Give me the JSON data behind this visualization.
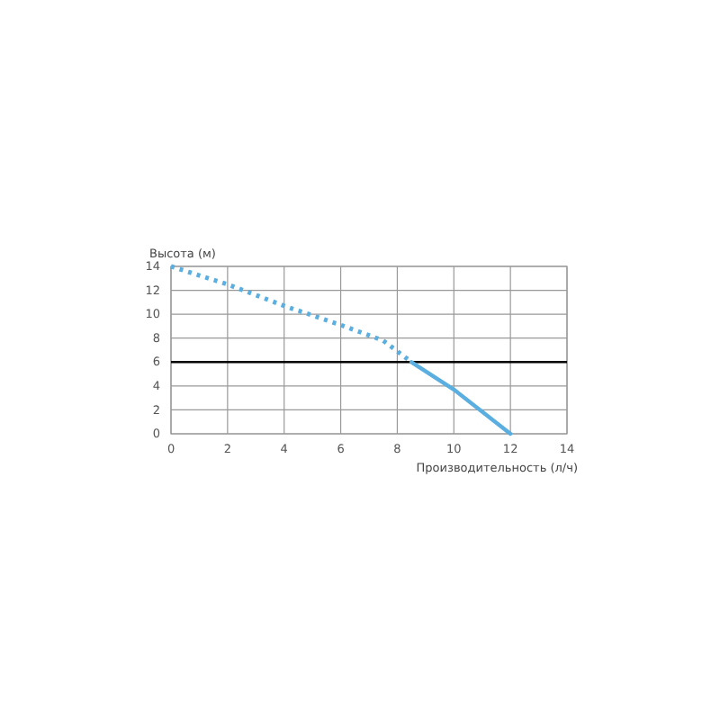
{
  "chart_data": {
    "type": "line",
    "xlabel": "Производительность (л/ч)",
    "ylabel": "Высота (м)",
    "xlim": [
      0,
      14
    ],
    "xticks": [
      0,
      2,
      4,
      6,
      8,
      10,
      12,
      14
    ],
    "ylim": [
      0,
      14
    ],
    "yticks": [
      0,
      2,
      4,
      6,
      8,
      10,
      12,
      14
    ],
    "grid": true,
    "series": [
      {
        "color": "#5aaee0",
        "line_style": "dotted",
        "x": [
          0,
          2,
          4,
          6,
          7.5,
          8.5
        ],
        "values": [
          14,
          12.5,
          10.7,
          9.1,
          7.8,
          6
        ]
      },
      {
        "color": "#5aaee0",
        "line_style": "solid",
        "x": [
          8.5,
          10,
          12
        ],
        "values": [
          6,
          3.7,
          0
        ]
      }
    ],
    "ref_lines": [
      {
        "axis": "y",
        "value": 6,
        "color": "#000000"
      }
    ]
  }
}
